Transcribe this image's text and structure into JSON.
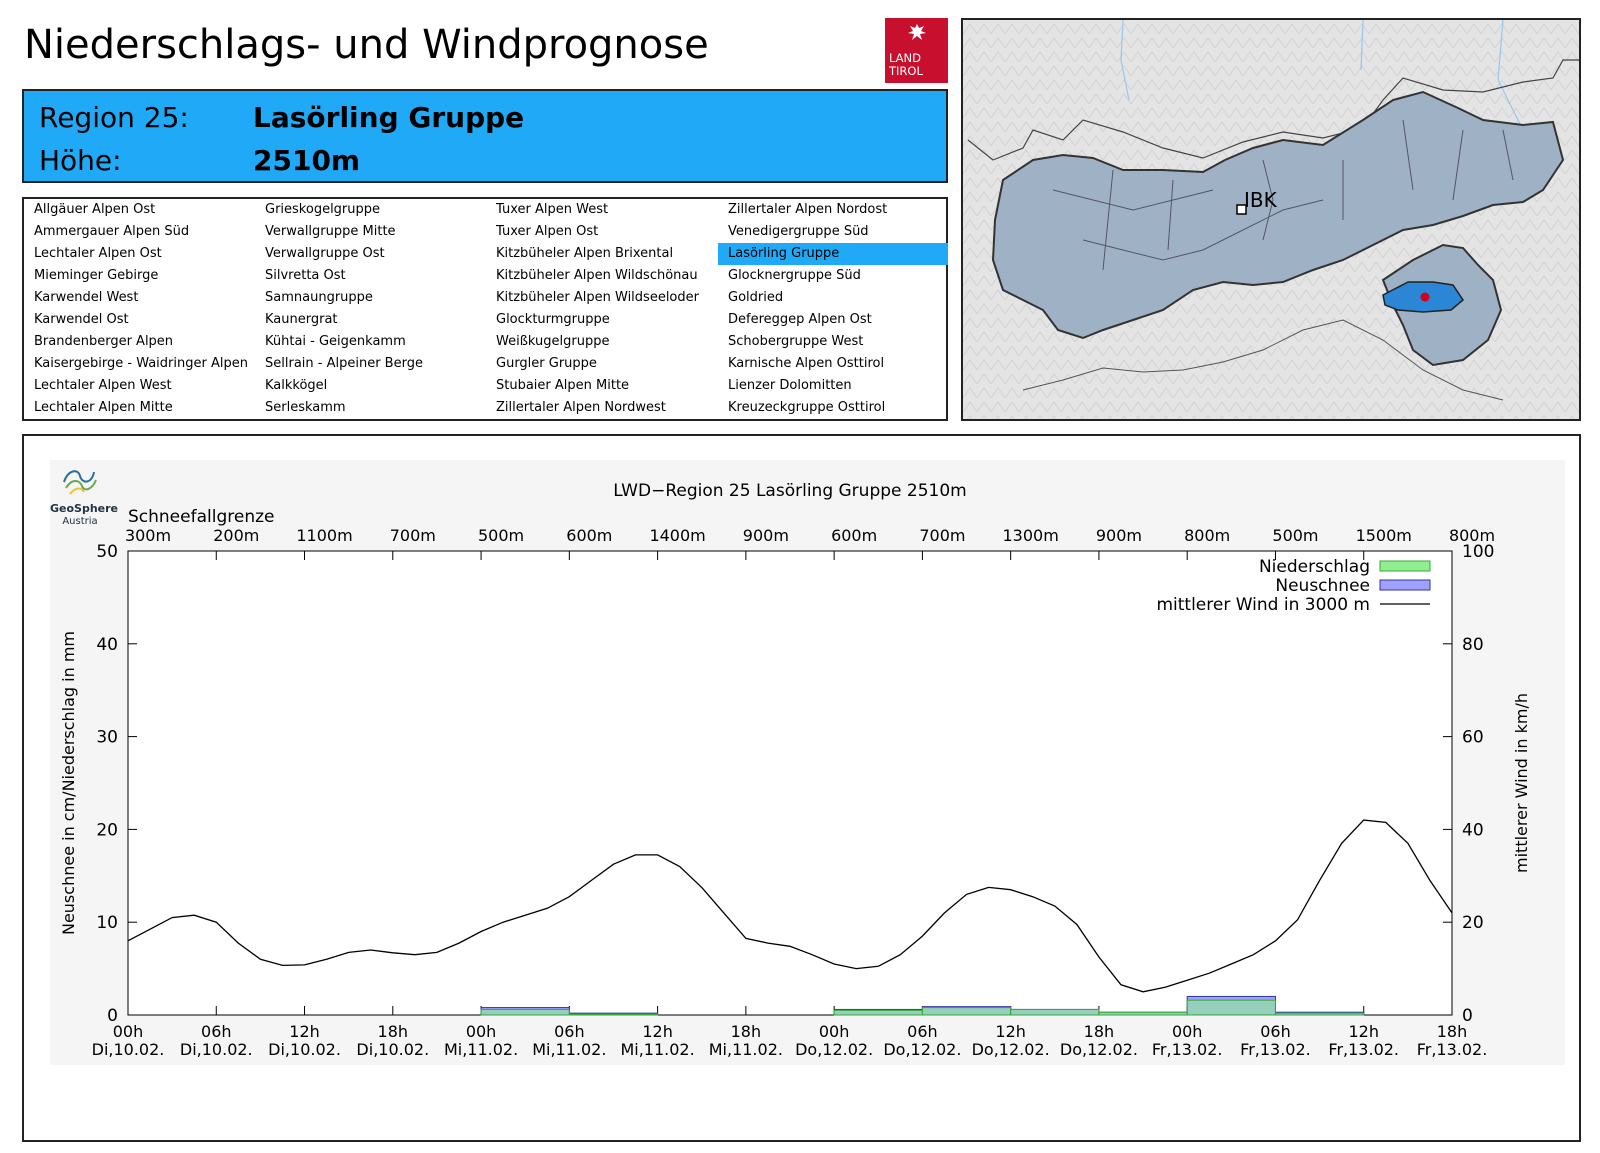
{
  "header": {
    "title": "Niederschlags- und Windprognose",
    "logo_line1": "LAND",
    "logo_line2": "TIROL",
    "logo_icon": "eagle-icon"
  },
  "region": {
    "label_region": "Region 25:",
    "value_region": "Lasörling Gruppe",
    "label_height": "Höhe:",
    "value_height": "2510m"
  },
  "region_list": {
    "columns": [
      [
        "Allgäuer Alpen Ost",
        "Ammergauer Alpen Süd",
        "Lechtaler Alpen Ost",
        "Mieminger Gebirge",
        "Karwendel West",
        "Karwendel Ost",
        "Brandenberger Alpen",
        "Kaisergebirge - Waidringer Alpen",
        "Lechtaler Alpen West",
        "Lechtaler Alpen Mitte"
      ],
      [
        "Grieskogelgruppe",
        "Verwallgruppe Mitte",
        "Verwallgruppe Ost",
        "Silvretta Ost",
        "Samnaungruppe",
        "Kaunergrat",
        "Kühtai - Geigenkamm",
        "Sellrain - Alpeiner Berge",
        "Kalkkögel",
        "Serleskamm"
      ],
      [
        "Tuxer Alpen West",
        "Tuxer Alpen Ost",
        "Kitzbüheler Alpen Brixental",
        "Kitzbüheler Alpen Wildschönau",
        "Kitzbüheler Alpen Wildseeloder",
        "Glockturmgruppe",
        "Weißkugelgruppe",
        "Gurgler Gruppe",
        "Stubaier Alpen Mitte",
        "Zillertaler Alpen Nordwest"
      ],
      [
        "Zillertaler Alpen Nordost",
        "Venedigergruppe Süd",
        "Lasörling Gruppe",
        "Glocknergruppe Süd",
        "Goldried",
        "Defereggер Alpen Ost",
        "Schobergruppe West",
        "Karnische Alpen Osttirol",
        "Lienzer Dolomitten",
        "Kreuzeckgruppe Osttirol"
      ]
    ],
    "selected": "Lasörling Gruppe"
  },
  "map": {
    "city_label": "IBK",
    "land_color": "#9fb1c4",
    "selected_color": "#2b86d6",
    "marker_color": "#d0021b"
  },
  "provider": {
    "line1": "GeoSphere",
    "line2": "Austria"
  },
  "chart_data": {
    "type": "bar",
    "title": "LWD−Region 25 Lasörling Gruppe 2510m",
    "snow_line_label": "Schneefallgrenze",
    "snow_line_values": [
      "300m",
      "200m",
      "1100m",
      "700m",
      "500m",
      "600m",
      "1400m",
      "900m",
      "600m",
      "700m",
      "1300m",
      "900m",
      "800m",
      "500m",
      "1500m",
      "800m"
    ],
    "ylabel": "Neuschnee in cm/Niederschlag in mm",
    "y2label": "mittlerer Wind in km/h",
    "ylim": [
      0,
      50
    ],
    "y2lim": [
      0,
      100
    ],
    "yticks": [
      "0",
      "10",
      "20",
      "30",
      "40",
      "50"
    ],
    "y2ticks": [
      "0",
      "20",
      "40",
      "60",
      "80",
      "100"
    ],
    "xlim": [
      0,
      90
    ],
    "xtick_hours": [
      "00h",
      "06h",
      "12h",
      "18h",
      "00h",
      "06h",
      "12h",
      "18h",
      "00h",
      "06h",
      "12h",
      "18h",
      "00h",
      "06h",
      "12h",
      "18h"
    ],
    "xtick_dates": [
      "Di,10.02.",
      "Di,10.02.",
      "Di,10.02.",
      "Di,10.02.",
      "Mi,11.02.",
      "Mi,11.02.",
      "Mi,11.02.",
      "Mi,11.02.",
      "Do,12.02.",
      "Do,12.02.",
      "Do,12.02.",
      "Do,12.02.",
      "Fr,13.02.",
      "Fr,13.02.",
      "Fr,13.02.",
      "Fr,13.02."
    ],
    "legend": [
      "Niederschlag",
      "Neuschnee",
      "mittlerer Wind in 3000 m"
    ],
    "legend_position": "top-right",
    "colors": {
      "niederschlag": "#90ee90",
      "neuschnee": "#a0a0ff",
      "wind": "#000000"
    },
    "niederschlag": [
      {
        "x0": 24,
        "x1": 30,
        "v": 0.6
      },
      {
        "x0": 30,
        "x1": 36,
        "v": 0.1
      },
      {
        "x0": 48,
        "x1": 54,
        "v": 0.5
      },
      {
        "x0": 54,
        "x1": 60,
        "v": 0.8
      },
      {
        "x0": 60,
        "x1": 66,
        "v": 0.6
      },
      {
        "x0": 66,
        "x1": 72,
        "v": 0.3
      },
      {
        "x0": 72,
        "x1": 78,
        "v": 1.6
      },
      {
        "x0": 78,
        "x1": 84,
        "v": 0.2
      }
    ],
    "neuschnee": [
      {
        "x0": 24,
        "x1": 30,
        "v": 0.8
      },
      {
        "x0": 30,
        "x1": 36,
        "v": 0.2
      },
      {
        "x0": 48,
        "x1": 54,
        "v": 0.6
      },
      {
        "x0": 54,
        "x1": 60,
        "v": 0.9
      },
      {
        "x0": 60,
        "x1": 66,
        "v": 0.6
      },
      {
        "x0": 66,
        "x1": 72,
        "v": 0.3
      },
      {
        "x0": 72,
        "x1": 78,
        "v": 2.0
      },
      {
        "x0": 78,
        "x1": 84,
        "v": 0.3
      }
    ],
    "wind": {
      "x": [
        0,
        1.5,
        3,
        4.5,
        6,
        7.5,
        9,
        10.5,
        12,
        13.5,
        15,
        16.5,
        18,
        19.5,
        21,
        22.5,
        24,
        25.5,
        27,
        28.5,
        30,
        31.5,
        33,
        34.5,
        36,
        37.5,
        39,
        40.5,
        42,
        43.5,
        45,
        46.5,
        48,
        49.5,
        51,
        52.5,
        54,
        55.5,
        57,
        58.5,
        60,
        61.5,
        63,
        64.5,
        66,
        67.5,
        69,
        70.5,
        72,
        73.5,
        75,
        76.5,
        78,
        79.5,
        81,
        82.5,
        84,
        85.5,
        87,
        88.5,
        90
      ],
      "y": [
        16,
        18.5,
        21,
        21.5,
        20,
        15.5,
        12,
        10.7,
        10.8,
        12,
        13.5,
        14,
        13.4,
        13,
        13.5,
        15.5,
        18,
        20,
        21.5,
        23,
        25.5,
        29,
        32.5,
        34.5,
        34.5,
        32,
        27.5,
        22,
        16.5,
        15.5,
        14.8,
        13,
        11,
        10,
        10.5,
        13,
        17,
        22,
        26,
        27.5,
        27,
        25.5,
        23.5,
        19.5,
        12.5,
        6.5,
        5,
        6,
        7.5,
        9,
        11,
        13,
        16,
        20.5,
        29,
        37,
        42,
        41.5,
        37,
        29,
        22
      ]
    }
  }
}
